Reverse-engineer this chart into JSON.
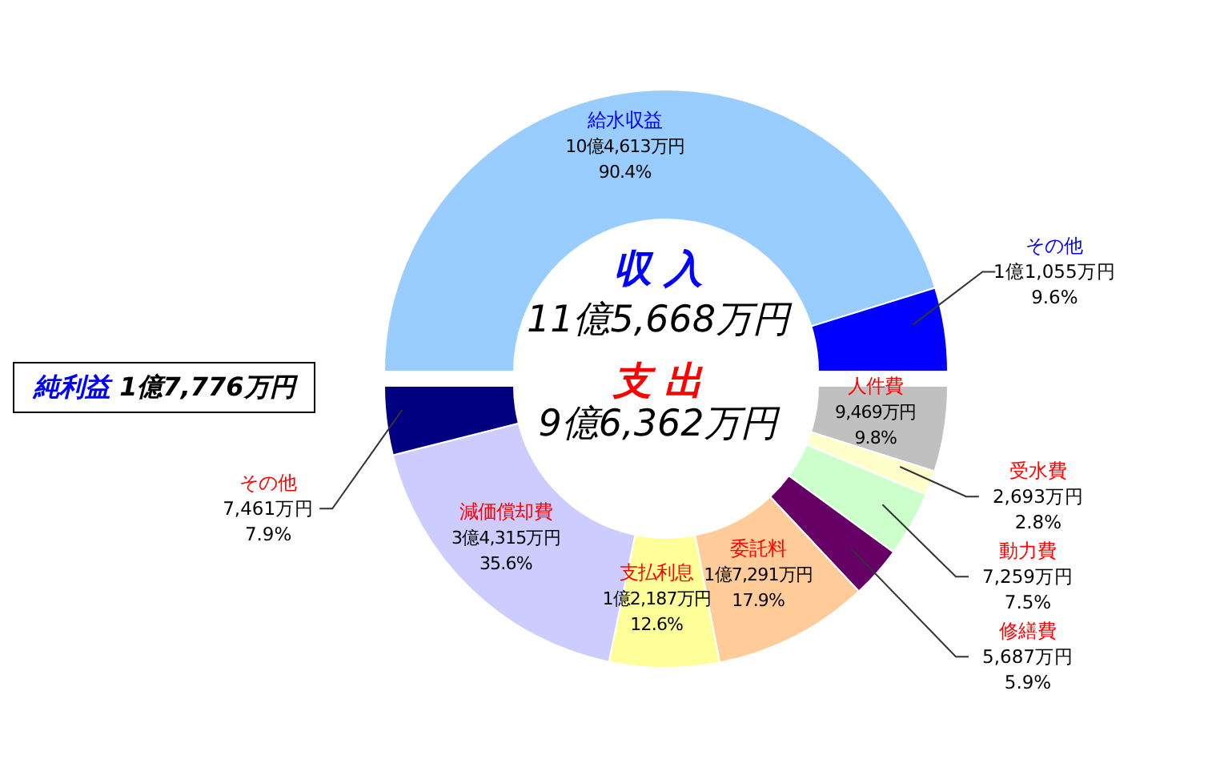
{
  "chart_data": [
    {
      "type": "donut",
      "title": "収 入",
      "subtitle": "11億5,668万円",
      "categories": [
        "給水収益",
        "その他"
      ],
      "values": [
        90.4,
        9.6
      ],
      "colors": [
        "#99ccff",
        "#0000ff"
      ],
      "value_labels": [
        "10億4,613万円\n90.4%",
        "1億1,055万円\n9.6%"
      ],
      "annotations": [
        "純利益 1億7,776万円"
      ]
    },
    {
      "type": "donut",
      "title": "支 出",
      "subtitle": "9億6,362万円",
      "categories": [
        "人件費",
        "受水費",
        "動力費",
        "修繕費",
        "委託料",
        "支払利息",
        "減価償却費",
        "その他"
      ],
      "values": [
        9.8,
        2.8,
        7.5,
        5.9,
        17.9,
        12.6,
        35.6,
        7.9
      ],
      "colors": [
        "#c0c0c0",
        "#ffffcc",
        "#ccffcc",
        "#660066",
        "#ffcc99",
        "#ffff99",
        "#ccccff",
        "#000080"
      ],
      "value_labels": [
        "9,469万円\n9.8%",
        "2,693万円\n2.8%",
        "7,259万円\n7.5%",
        "5,687万円\n5.9%",
        "1億7,291万円\n17.9%",
        "1億2,187万円\n12.6%",
        "3億4,315万円\n35.6%",
        "7,461万円\n7.9%"
      ]
    }
  ]
}
